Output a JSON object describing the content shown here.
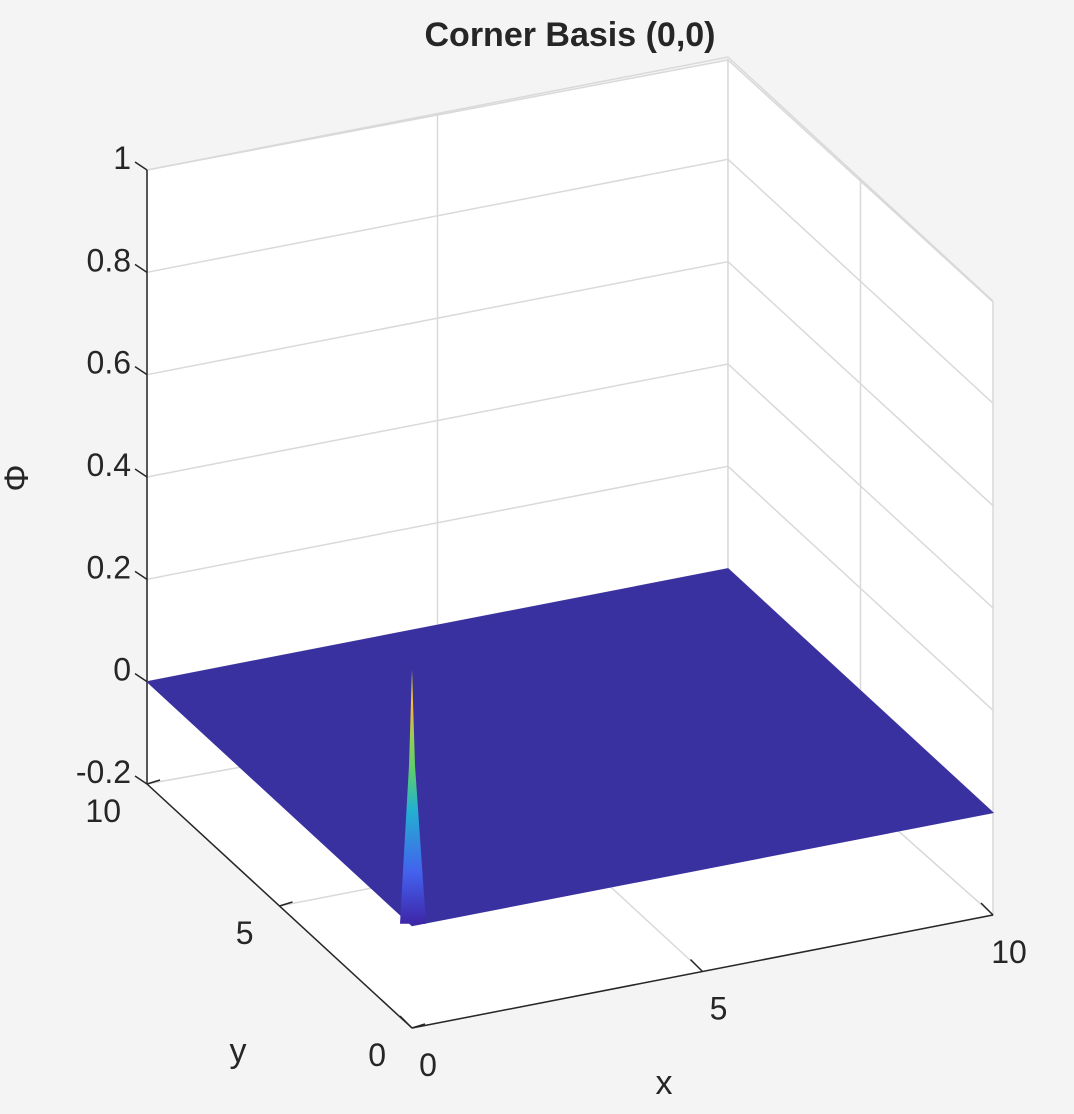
{
  "chart_data": {
    "type": "surface",
    "title": "Corner Basis (0,0)",
    "xlabel": "x",
    "ylabel": "y",
    "zlabel": "Φ",
    "xlim": [
      0,
      10
    ],
    "ylim": [
      0,
      10
    ],
    "zlim": [
      -0.2,
      1
    ],
    "xticks": [
      "0",
      "5",
      "10"
    ],
    "yticks": [
      "0",
      "5",
      "10"
    ],
    "zticks": [
      "-0.2",
      "0",
      "0.2",
      "0.4",
      "0.6",
      "0.8",
      "1"
    ],
    "grid": true,
    "colormap": "parula",
    "surface_color": "#3a31a0",
    "peak": {
      "x": 0,
      "y": 0,
      "z": 0.5
    }
  }
}
